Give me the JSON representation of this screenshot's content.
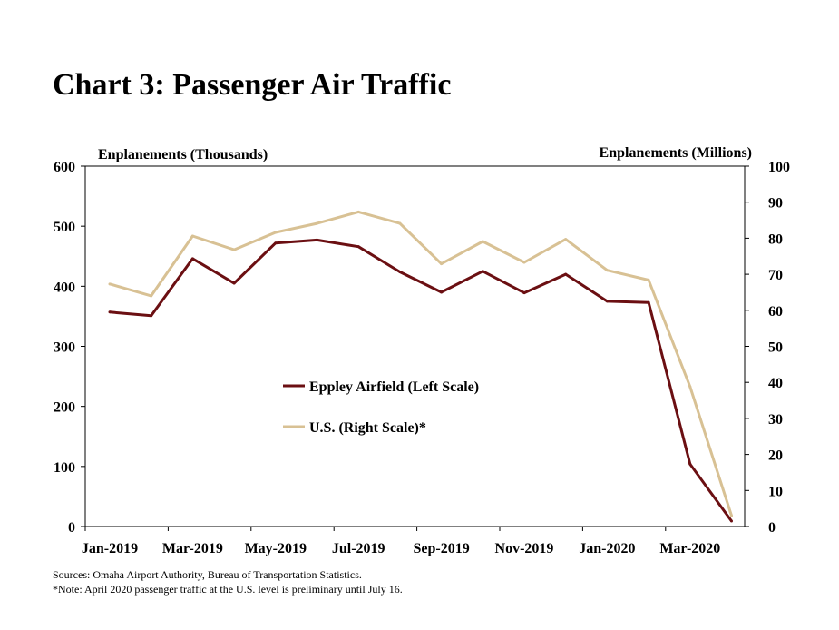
{
  "chart_data": {
    "type": "line",
    "title": "Chart 3: Passenger Air Traffic",
    "y_left_label": "Enplanements (Thousands)",
    "y_right_label": "Enplanements (Millions)",
    "y_left_range": [
      0,
      600
    ],
    "y_left_ticks": [
      "0",
      "100",
      "200",
      "300",
      "400",
      "500",
      "600"
    ],
    "y_right_range": [
      0,
      100
    ],
    "y_right_ticks": [
      "0",
      "10",
      "20",
      "30",
      "40",
      "50",
      "60",
      "70",
      "80",
      "90",
      "100"
    ],
    "x": [
      "Jan-2019",
      "Feb-2019",
      "Mar-2019",
      "Apr-2019",
      "May-2019",
      "Jun-2019",
      "Jul-2019",
      "Aug-2019",
      "Sep-2019",
      "Oct-2019",
      "Nov-2019",
      "Dec-2019",
      "Jan-2020",
      "Feb-2020",
      "Mar-2020",
      "Apr-2020"
    ],
    "x_tick_labels": [
      "Jan-2019",
      "Mar-2019",
      "May-2019",
      "Jul-2019",
      "Sep-2019",
      "Nov-2019",
      "Jan-2020",
      "Mar-2020"
    ],
    "grid": false,
    "legend_position": "center-left inside plot",
    "series": [
      {
        "name": "Eppley Airfield (Left Scale)",
        "axis": "left",
        "color": "#6b0f12",
        "values": [
          357,
          351,
          446,
          405,
          472,
          477,
          466,
          424,
          390,
          425,
          389,
          420,
          375,
          373,
          104,
          9
        ]
      },
      {
        "name": "U.S. (Right Scale)*",
        "axis": "right",
        "color": "#d8c194",
        "values": [
          67.3,
          64.0,
          80.6,
          76.8,
          81.6,
          84.1,
          87.3,
          84.1,
          72.9,
          79.1,
          73.3,
          79.7,
          71.1,
          68.4,
          38.8,
          3.0
        ]
      }
    ]
  },
  "notes": {
    "sources": "Sources: Omaha Airport Authority, Bureau of Transportation Statistics.",
    "note": "*Note: April 2020 passenger traffic at the U.S. level is preliminary until July 16."
  }
}
